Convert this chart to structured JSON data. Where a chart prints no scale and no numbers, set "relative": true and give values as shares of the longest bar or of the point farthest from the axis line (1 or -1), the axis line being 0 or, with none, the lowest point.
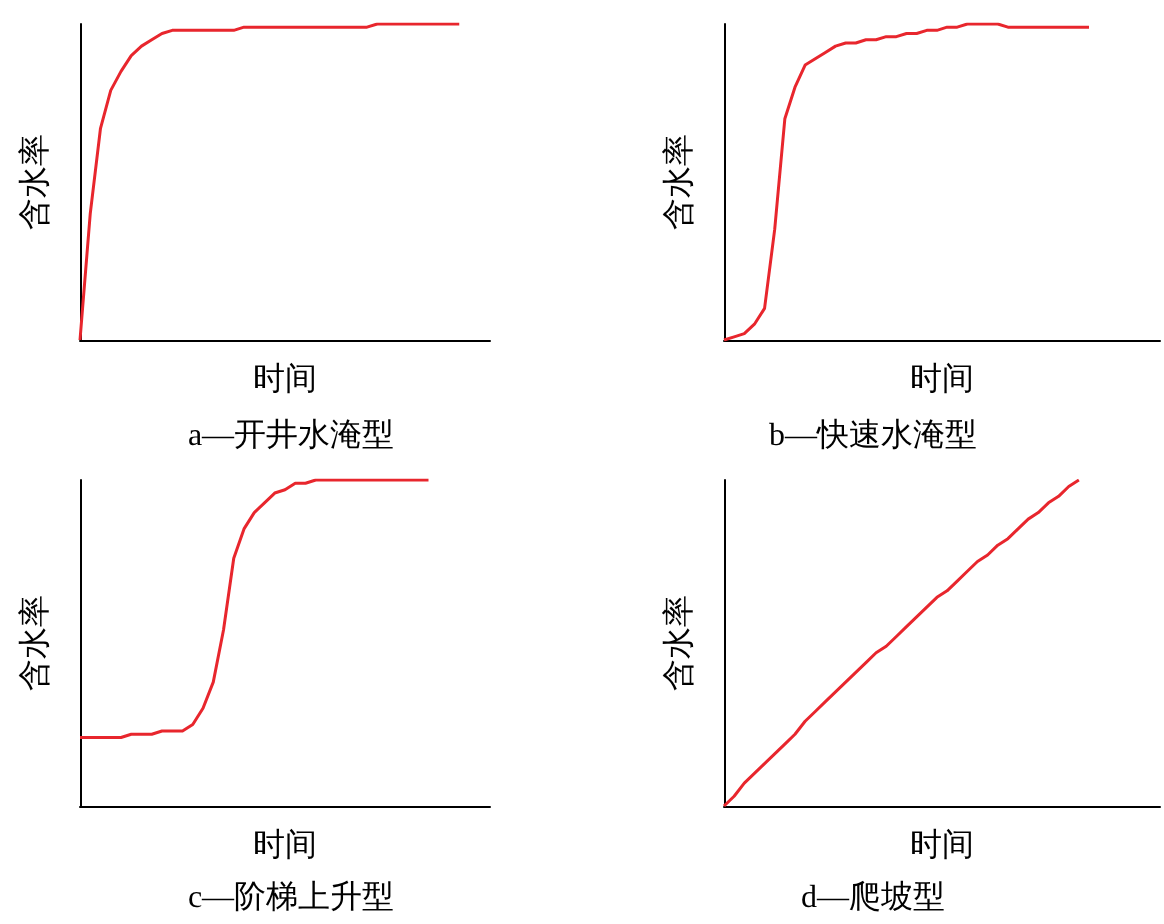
{
  "chart_data": [
    {
      "type": "line",
      "title": "a—开井水淹型",
      "xlabel": "时间",
      "ylabel": "含水率",
      "relative": true,
      "color": "#e8262d",
      "categories": [
        null,
        null,
        null,
        null,
        null,
        null,
        null,
        null,
        null,
        null,
        null,
        null,
        null,
        null,
        null,
        null,
        null,
        null,
        null,
        null,
        null,
        null,
        null,
        null,
        null,
        null,
        null,
        null,
        null,
        null,
        null,
        null,
        null,
        null,
        null,
        null,
        null,
        null,
        null,
        null,
        null
      ],
      "values": [
        0,
        0.4,
        0.67,
        0.79,
        0.85,
        0.9,
        0.93,
        0.95,
        0.97,
        0.98,
        0.98,
        0.98,
        0.98,
        0.98,
        0.98,
        0.98,
        0.99,
        0.99,
        0.99,
        0.99,
        0.99,
        0.99,
        0.99,
        0.99,
        0.99,
        0.99,
        0.99,
        0.99,
        0.99,
        1,
        1,
        1,
        1,
        1,
        1,
        1,
        1,
        1,
        null,
        null,
        null
      ]
    },
    {
      "type": "line",
      "title": "b—快速水淹型",
      "xlabel": "时间",
      "ylabel": "含水率",
      "relative": true,
      "color": "#e8262d",
      "categories": [
        null,
        null,
        null,
        null,
        null,
        null,
        null,
        null,
        null,
        null,
        null,
        null,
        null,
        null,
        null,
        null,
        null,
        null,
        null,
        null,
        null,
        null,
        null,
        null,
        null,
        null,
        null,
        null,
        null,
        null,
        null,
        null,
        null,
        null,
        null,
        null,
        null,
        null,
        null,
        null,
        null,
        null,
        null,
        null
      ],
      "values": [
        0,
        0.01,
        0.02,
        0.05,
        0.1,
        0.35,
        0.7,
        0.8,
        0.87,
        0.89,
        0.91,
        0.93,
        0.94,
        0.94,
        0.95,
        0.95,
        0.96,
        0.96,
        0.97,
        0.97,
        0.98,
        0.98,
        0.99,
        0.99,
        1,
        1,
        1,
        1,
        0.99,
        0.99,
        0.99,
        0.99,
        0.99,
        0.99,
        0.99,
        0.99,
        0.99,
        null,
        null,
        null,
        null,
        null,
        null,
        null
      ]
    },
    {
      "type": "line",
      "title": "c—阶梯上升型",
      "xlabel": "时间",
      "ylabel": "含水率",
      "relative": true,
      "color": "#e8262d",
      "categories": [
        null,
        null,
        null,
        null,
        null,
        null,
        null,
        null,
        null,
        null,
        null,
        null,
        null,
        null,
        null,
        null,
        null,
        null,
        null,
        null,
        null,
        null,
        null,
        null,
        null,
        null,
        null,
        null,
        null,
        null,
        null,
        null,
        null,
        null,
        null,
        null,
        null,
        null,
        null,
        null,
        null
      ],
      "values": [
        0.21,
        0.21,
        0.21,
        0.21,
        0.21,
        0.22,
        0.22,
        0.22,
        0.23,
        0.23,
        0.23,
        0.25,
        0.3,
        0.38,
        0.54,
        0.76,
        0.85,
        0.9,
        0.93,
        0.96,
        0.97,
        0.99,
        0.99,
        1,
        1,
        1,
        1,
        1,
        1,
        1,
        1,
        1,
        1,
        1,
        1,
        null,
        null,
        null,
        null,
        null,
        null
      ]
    },
    {
      "type": "line",
      "title": "d—爬坡型",
      "xlabel": "时间",
      "ylabel": "含水率",
      "relative": true,
      "color": "#e8262d",
      "categories": [
        null,
        null,
        null,
        null,
        null,
        null,
        null,
        null,
        null,
        null,
        null,
        null,
        null,
        null,
        null,
        null,
        null,
        null,
        null,
        null,
        null,
        null,
        null,
        null,
        null,
        null,
        null,
        null,
        null,
        null,
        null,
        null,
        null,
        null,
        null,
        null,
        null,
        null,
        null,
        null,
        null,
        null,
        null,
        null
      ],
      "values": [
        0,
        0.03,
        0.07,
        0.1,
        0.13,
        0.16,
        0.19,
        0.22,
        0.26,
        0.29,
        0.32,
        0.35,
        0.38,
        0.41,
        0.44,
        0.47,
        0.49,
        0.52,
        0.55,
        0.58,
        0.61,
        0.64,
        0.66,
        0.69,
        0.72,
        0.75,
        0.77,
        0.8,
        0.82,
        0.85,
        0.88,
        0.9,
        0.93,
        0.95,
        0.98,
        1,
        null,
        null,
        null,
        null,
        null,
        null,
        null,
        null
      ]
    }
  ]
}
